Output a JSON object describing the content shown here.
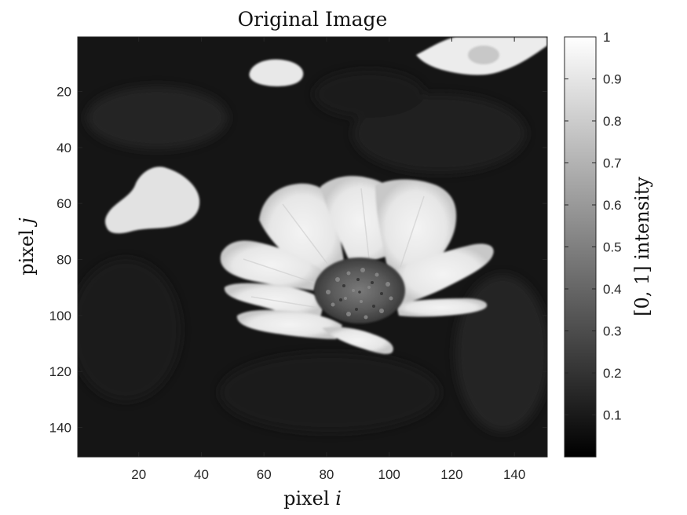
{
  "chart_data": {
    "type": "heatmap",
    "title": "Original Image",
    "xlabel": "pixel",
    "xlabel_var": "i",
    "ylabel": "pixel",
    "ylabel_var": "j",
    "xlim": [
      0.5,
      150.5
    ],
    "ylim": [
      0.5,
      150.5
    ],
    "y_direction": "reversed",
    "xticks": [
      20,
      40,
      60,
      80,
      100,
      120,
      140
    ],
    "yticks": [
      20,
      40,
      60,
      80,
      100,
      120,
      140
    ],
    "colormap": "gray",
    "colorbar": {
      "label": "[0, 1] intensity",
      "range": [
        0,
        1
      ],
      "ticks": [
        0.1,
        0.2,
        0.3,
        0.4,
        0.5,
        0.6,
        0.7,
        0.8,
        0.9,
        1
      ]
    },
    "image_size": [
      150,
      150
    ],
    "content": "grayscale photograph of a white daisy-like flower with a dark textured center on a dark background; smaller bright flower fragments near the top and left"
  }
}
